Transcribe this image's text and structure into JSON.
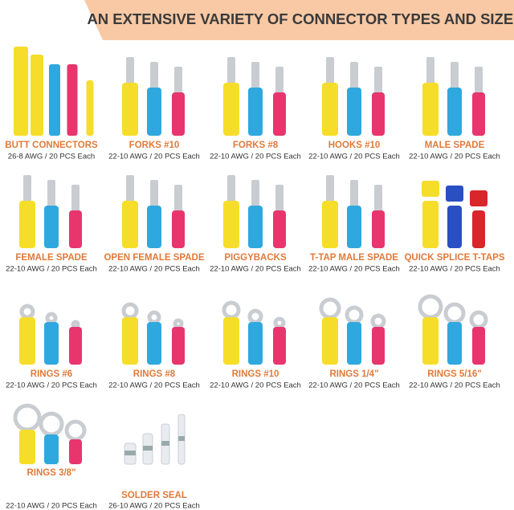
{
  "header": {
    "title": "AN EXTENSIVE VARIETY OF CONNECTOR TYPES AND SIZES"
  },
  "items": [
    {
      "name": "BUTT CONNECTORS",
      "spec": "26-8 AWG / 20 PCS Each"
    },
    {
      "name": "FORKS #10",
      "spec": "22-10 AWG / 20 PCS Each"
    },
    {
      "name": "FORKS #8",
      "spec": "22-10 AWG / 20 PCS Each"
    },
    {
      "name": "HOOKS #10",
      "spec": "22-10 AWG / 20 PCS Each"
    },
    {
      "name": "MALE SPADE",
      "spec": "22-10 AWG / 20 PCS Each"
    },
    {
      "name": "FEMALE SPADE",
      "spec": "22-10 AWG / 20 PCS Each"
    },
    {
      "name": "OPEN FEMALE SPADE",
      "spec": "22-10 AWG / 20 PCS Each"
    },
    {
      "name": "PIGGYBACKS",
      "spec": "22-10 AWG / 20 PCS Each"
    },
    {
      "name": "T-TAP MALE SPADE",
      "spec": "22-10 AWG / 20 PCS Each"
    },
    {
      "name": "QUICK SPLICE T-TAPS",
      "spec": "22-10 AWG / 20 PCS Each"
    },
    {
      "name": "RINGS #6",
      "spec": "22-10 AWG / 20 PCS Each"
    },
    {
      "name": "RINGS #8",
      "spec": "22-10 AWG / 20 PCS Each"
    },
    {
      "name": "RINGS #10",
      "spec": "22-10 AWG / 20 PCS Each"
    },
    {
      "name": "RINGS 1/4\"",
      "spec": "22-10 AWG / 20 PCS Each"
    },
    {
      "name": "RINGS 5/16\"",
      "spec": "22-10 AWG / 20 PCS Each"
    },
    {
      "name": "RINGS 3/8\"",
      "spec": "22-10 AWG / 20 PCS Each"
    },
    {
      "name": "SOLDER SEAL",
      "spec": "26-10 AWG / 20 PCS Each"
    }
  ]
}
